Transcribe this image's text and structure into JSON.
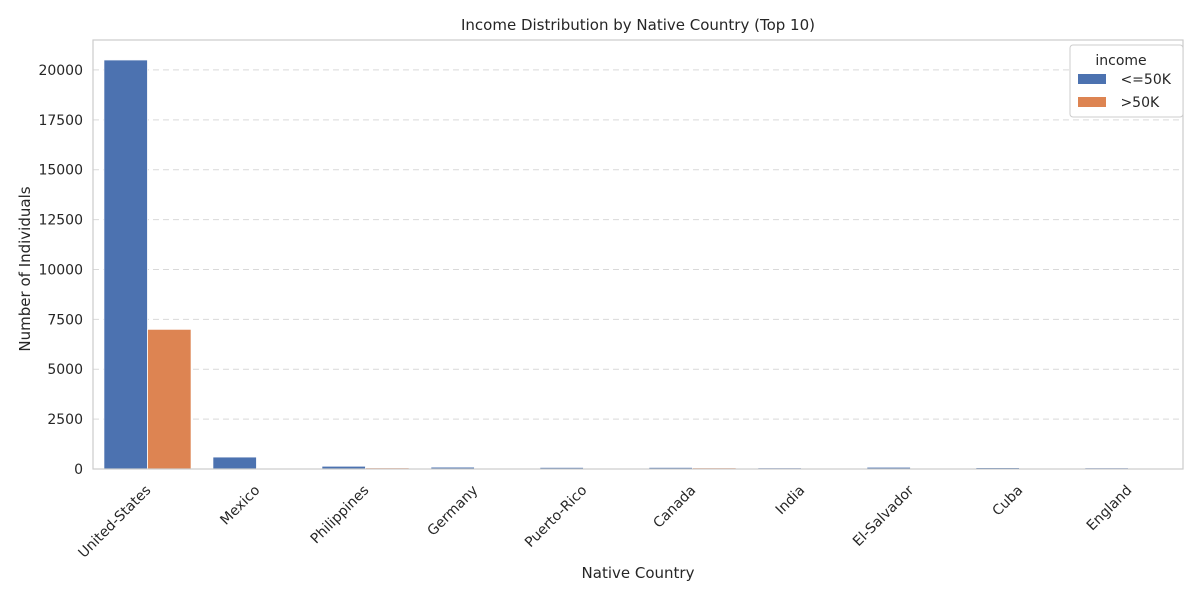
{
  "chart_data": {
    "type": "bar",
    "title": "Income Distribution by Native Country (Top 10)",
    "xlabel": "Native Country",
    "ylabel": "Number of Individuals",
    "ylim": [
      0,
      21500
    ],
    "yticks": [
      0,
      2500,
      5000,
      7500,
      10000,
      12500,
      15000,
      17500,
      20000
    ],
    "grid": "y-dashed",
    "categories": [
      "United-States",
      "Mexico",
      "Philippines",
      "Germany",
      "Puerto-Rico",
      "Canada",
      "India",
      "El-Salvador",
      "Cuba",
      "England"
    ],
    "legend": {
      "title": "income",
      "placement": "top-right"
    },
    "series": [
      {
        "name": " <=50K",
        "color": "#4c72b0",
        "values": [
          20500,
          600,
          140,
          95,
          80,
          80,
          60,
          90,
          70,
          60
        ]
      },
      {
        "name": " >50K",
        "color": "#dd8452",
        "values": [
          7000,
          35,
          60,
          45,
          35,
          60,
          40,
          10,
          25,
          30
        ]
      }
    ]
  }
}
